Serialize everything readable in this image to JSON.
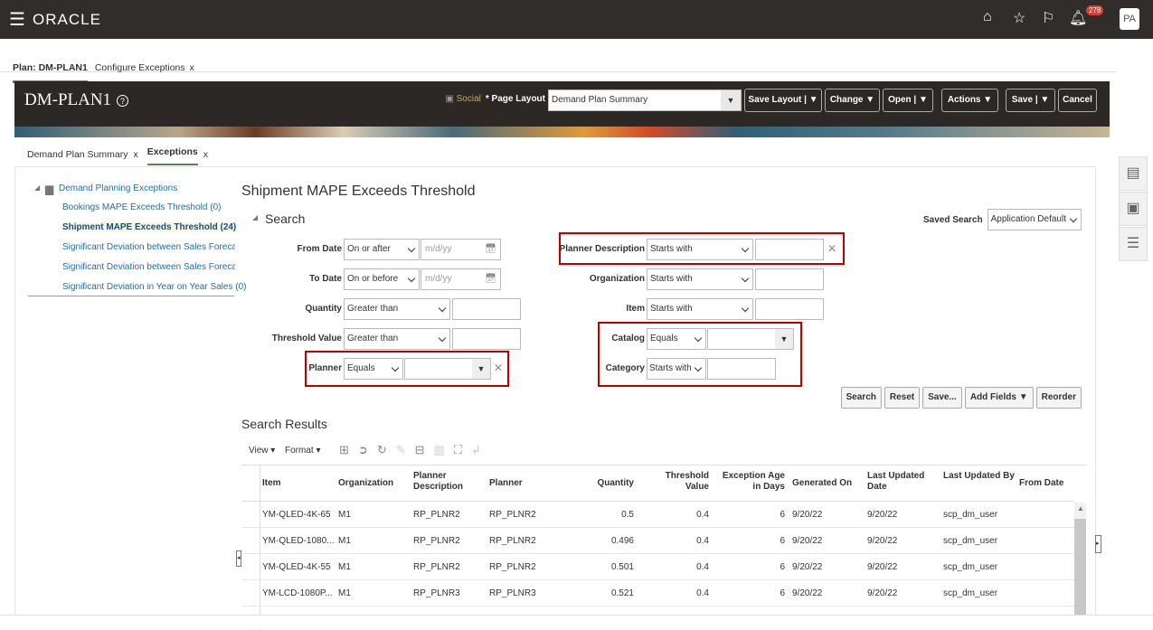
{
  "topbar": {
    "brand": "ORACLE",
    "notif_count": "278",
    "avatar": "PA",
    "icons": [
      "home-icon",
      "star-icon",
      "flag-icon",
      "bell-icon"
    ]
  },
  "tabs": [
    {
      "label": "Plan: DM-PLAN1"
    },
    {
      "label": "Configure Exceptions",
      "close": "x"
    }
  ],
  "header": {
    "title": "DM-PLAN1",
    "help": "?",
    "social": "Social",
    "page_layout_label": "* Page Layout",
    "page_layout_value": "Demand Plan Summary",
    "buttons": [
      "Save Layout",
      "Change",
      "Open",
      "Actions",
      "Save",
      "Cancel"
    ]
  },
  "subtabs": [
    {
      "label": "Demand Plan Summary",
      "close": "x"
    },
    {
      "label": "Exceptions",
      "close": "x"
    }
  ],
  "tree": {
    "root": "Demand Planning Exceptions",
    "items": [
      "Bookings MAPE Exceeds Threshold (0)",
      "Shipment MAPE Exceeds Threshold (24)",
      "Significant Deviation between Sales Forecast ar",
      "Significant Deviation between Sales Forecast ar",
      "Significant Deviation in Year on Year Sales (0)"
    ]
  },
  "page_title": "Shipment MAPE Exceeds Threshold",
  "search": {
    "heading": "Search",
    "saved_search_label": "Saved Search",
    "saved_search_value": "Application Default",
    "from_date": {
      "label": "From Date",
      "op": "On or after",
      "placeholder": "m/d/yy"
    },
    "to_date": {
      "label": "To Date",
      "op": "On or before",
      "placeholder": "m/d/yy"
    },
    "quantity": {
      "label": "Quantity",
      "op": "Greater than"
    },
    "threshold": {
      "label": "Threshold Value",
      "op": "Greater than"
    },
    "planner": {
      "label": "Planner",
      "op": "Equals"
    },
    "planner_desc": {
      "label": "Planner Description",
      "op": "Starts with"
    },
    "organization": {
      "label": "Organization",
      "op": "Starts with"
    },
    "item": {
      "label": "Item",
      "op": "Starts with"
    },
    "catalog": {
      "label": "Catalog",
      "op": "Equals"
    },
    "category": {
      "label": "Category",
      "op": "Starts with"
    },
    "buttons": [
      "Search",
      "Reset",
      "Save...",
      "Add Fields",
      "Reorder"
    ]
  },
  "results": {
    "heading": "Search Results",
    "view": "View",
    "format": "Format",
    "columns": [
      "Item",
      "Organization",
      "Planner Description",
      "Planner",
      "Quantity",
      "Threshold Value",
      "Exception Age in Days",
      "Generated On",
      "Last Updated Date",
      "Last Updated By",
      "From Date"
    ],
    "rows": [
      [
        "YM-QLED-4K-65",
        "M1",
        "RP_PLNR2",
        "RP_PLNR2",
        "0.5",
        "0.4",
        "6",
        "9/20/22",
        "9/20/22",
        "scp_dm_user",
        ""
      ],
      [
        "YM-QLED-1080...",
        "M1",
        "RP_PLNR2",
        "RP_PLNR2",
        "0.496",
        "0.4",
        "6",
        "9/20/22",
        "9/20/22",
        "scp_dm_user",
        ""
      ],
      [
        "YM-QLED-4K-55",
        "M1",
        "RP_PLNR2",
        "RP_PLNR2",
        "0.501",
        "0.4",
        "6",
        "9/20/22",
        "9/20/22",
        "scp_dm_user",
        ""
      ],
      [
        "YM-LCD-1080P...",
        "M1",
        "RP_PLNR3",
        "RP_PLNR3",
        "0.521",
        "0.4",
        "6",
        "9/20/22",
        "9/20/22",
        "scp_dm_user",
        ""
      ]
    ]
  }
}
